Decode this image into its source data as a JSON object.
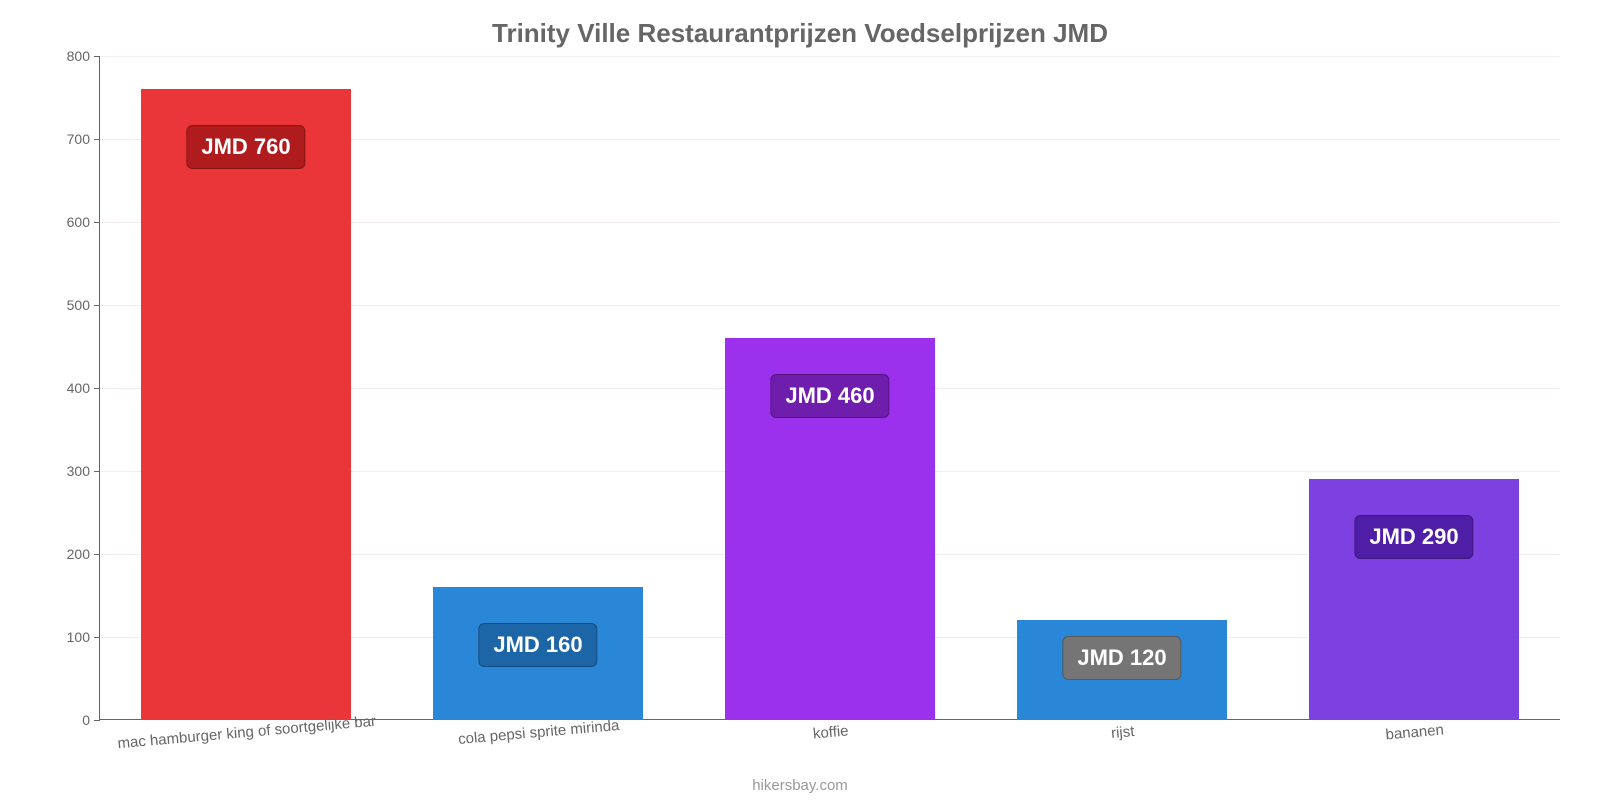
{
  "chart": {
    "type": "bar",
    "title": "Trinity Ville Restaurantprijzen Voedselprijzen JMD",
    "title_color": "#666666",
    "title_fontsize": 26,
    "background_color": "#ffffff",
    "grid_color": "#f2ecec",
    "axis_color": "#666666",
    "tick_label_color": "#666666",
    "tick_fontsize": 14,
    "xlabel_fontsize": 15,
    "ylim": [
      0,
      800
    ],
    "ytick_step": 100,
    "bar_width_pct": 72,
    "data_label_fontsize": 22,
    "data_label_text_color": "#ffffff",
    "categories": [
      "mac hamburger king of soortgelijke bar",
      "cola pepsi sprite mirinda",
      "koffie",
      "rijst",
      "bananen"
    ],
    "values": [
      760,
      160,
      460,
      120,
      290
    ],
    "bar_colors": [
      "#eb3639",
      "#2a87d7",
      "#9b30ed",
      "#2a87d7",
      "#7d41e2"
    ],
    "data_labels": [
      "JMD 760",
      "JMD 160",
      "JMD 460",
      "JMD 120",
      "JMD 290"
    ],
    "data_label_bg": [
      "#b01b1e",
      "#1c65a6",
      "#6f1dad",
      "#757575",
      "#4f1ea6"
    ],
    "source": "hikersbay.com"
  }
}
